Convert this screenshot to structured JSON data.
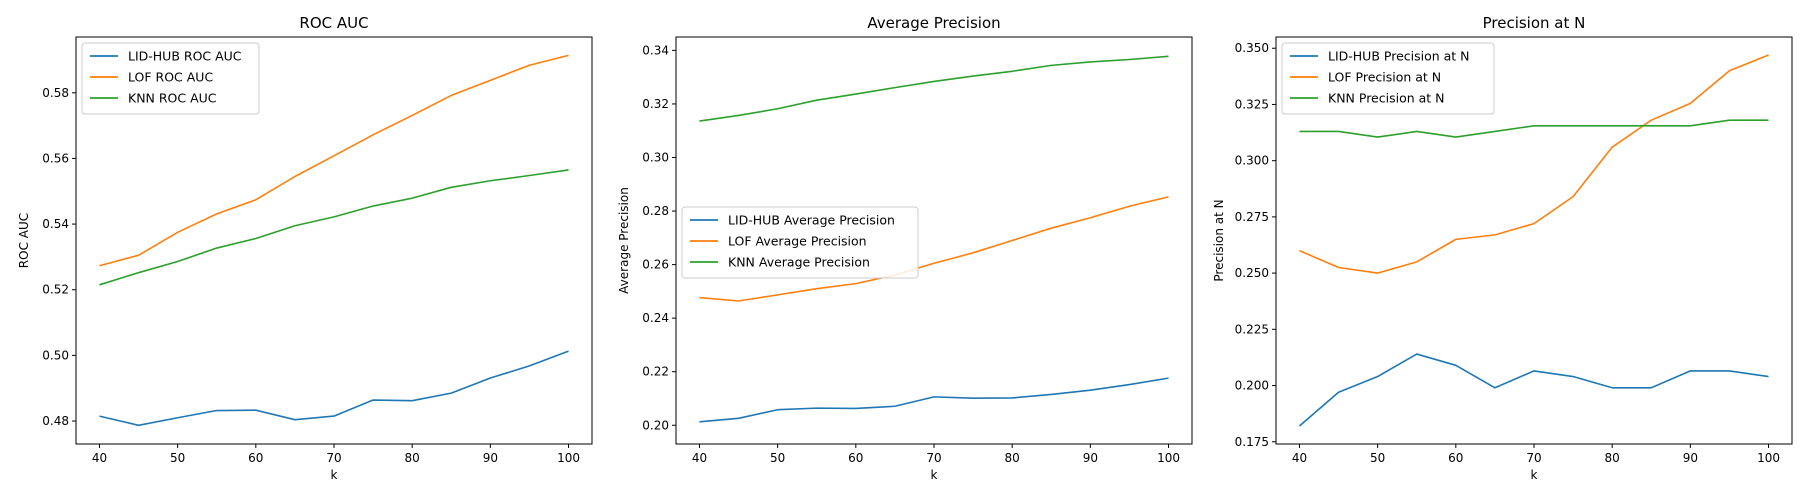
{
  "colors": {
    "lid_hub": "#1f77b4",
    "lof": "#ff7f0e",
    "knn": "#2ca02c"
  },
  "chart_data": [
    {
      "type": "line",
      "title": "ROC AUC",
      "xlabel": "k",
      "ylabel": "ROC AUC",
      "x": [
        40,
        45,
        50,
        55,
        60,
        65,
        70,
        75,
        80,
        85,
        90,
        95,
        100
      ],
      "xlim": [
        37,
        103
      ],
      "ylim": [
        0.473,
        0.597
      ],
      "xticks": [
        "40",
        "50",
        "60",
        "70",
        "80",
        "90",
        "100"
      ],
      "yticks": [
        "0.48",
        "0.50",
        "0.52",
        "0.54",
        "0.56",
        "0.58"
      ],
      "legend_position": "upper-left",
      "series": [
        {
          "name": "LID-HUB ROC AUC",
          "color": "#1f77b4",
          "values": [
            0.4815,
            0.4787,
            0.481,
            0.4832,
            0.4833,
            0.4804,
            0.4815,
            0.4864,
            0.4862,
            0.4885,
            0.4931,
            0.4968,
            0.5013
          ]
        },
        {
          "name": "LOF ROC AUC",
          "color": "#ff7f0e",
          "values": [
            0.5273,
            0.5305,
            0.5375,
            0.5431,
            0.5474,
            0.5545,
            0.5608,
            0.5672,
            0.5731,
            0.5792,
            0.5838,
            0.5884,
            0.5914
          ]
        },
        {
          "name": "KNN ROC AUC",
          "color": "#2ca02c",
          "values": [
            0.5215,
            0.5252,
            0.5286,
            0.5327,
            0.5356,
            0.5395,
            0.5422,
            0.5455,
            0.5479,
            0.5512,
            0.5532,
            0.5548,
            0.5565
          ]
        }
      ]
    },
    {
      "type": "line",
      "title": "Average Precision",
      "xlabel": "k",
      "ylabel": "Average Precision",
      "x": [
        40,
        45,
        50,
        55,
        60,
        65,
        70,
        75,
        80,
        85,
        90,
        95,
        100
      ],
      "xlim": [
        37,
        103
      ],
      "ylim": [
        0.193,
        0.345
      ],
      "xticks": [
        "40",
        "50",
        "60",
        "70",
        "80",
        "90",
        "100"
      ],
      "yticks": [
        "0.20",
        "0.22",
        "0.24",
        "0.26",
        "0.28",
        "0.30",
        "0.32",
        "0.34"
      ],
      "legend_position": "center-left",
      "series": [
        {
          "name": "LID-HUB Average Precision",
          "color": "#1f77b4",
          "values": [
            0.2013,
            0.2026,
            0.2058,
            0.2064,
            0.2063,
            0.2071,
            0.2106,
            0.2101,
            0.2102,
            0.2115,
            0.2131,
            0.2152,
            0.2176
          ]
        },
        {
          "name": "LOF Average Precision",
          "color": "#ff7f0e",
          "values": [
            0.2477,
            0.2464,
            0.2487,
            0.251,
            0.2529,
            0.2561,
            0.2605,
            0.2644,
            0.269,
            0.2736,
            0.2775,
            0.2818,
            0.2853
          ]
        },
        {
          "name": "KNN Average Precision",
          "color": "#2ca02c",
          "values": [
            0.3136,
            0.3157,
            0.3182,
            0.3214,
            0.3237,
            0.3261,
            0.3284,
            0.3304,
            0.3322,
            0.3344,
            0.3357,
            0.3366,
            0.3378
          ]
        }
      ]
    },
    {
      "type": "line",
      "title": "Precision at N",
      "xlabel": "k",
      "ylabel": "Precision at N",
      "x": [
        40,
        45,
        50,
        55,
        60,
        65,
        70,
        75,
        80,
        85,
        90,
        95,
        100
      ],
      "xlim": [
        37,
        103
      ],
      "ylim": [
        0.174,
        0.355
      ],
      "xticks": [
        "40",
        "50",
        "60",
        "70",
        "80",
        "90",
        "100"
      ],
      "yticks": [
        "0.175",
        "0.200",
        "0.225",
        "0.250",
        "0.275",
        "0.300",
        "0.325",
        "0.350"
      ],
      "legend_position": "upper-left",
      "series": [
        {
          "name": "LID-HUB Precision at N",
          "color": "#1f77b4",
          "values": [
            0.182,
            0.197,
            0.204,
            0.214,
            0.209,
            0.199,
            0.2065,
            0.204,
            0.199,
            0.199,
            0.2065,
            0.2065,
            0.204
          ]
        },
        {
          "name": "LOF Precision at N",
          "color": "#ff7f0e",
          "values": [
            0.26,
            0.2525,
            0.25,
            0.255,
            0.265,
            0.267,
            0.272,
            0.284,
            0.306,
            0.318,
            0.3255,
            0.34,
            0.347
          ]
        },
        {
          "name": "KNN Precision at N",
          "color": "#2ca02c",
          "values": [
            0.313,
            0.313,
            0.3105,
            0.313,
            0.3105,
            0.313,
            0.3155,
            0.3155,
            0.3155,
            0.3155,
            0.3155,
            0.318,
            0.318
          ]
        }
      ]
    }
  ]
}
